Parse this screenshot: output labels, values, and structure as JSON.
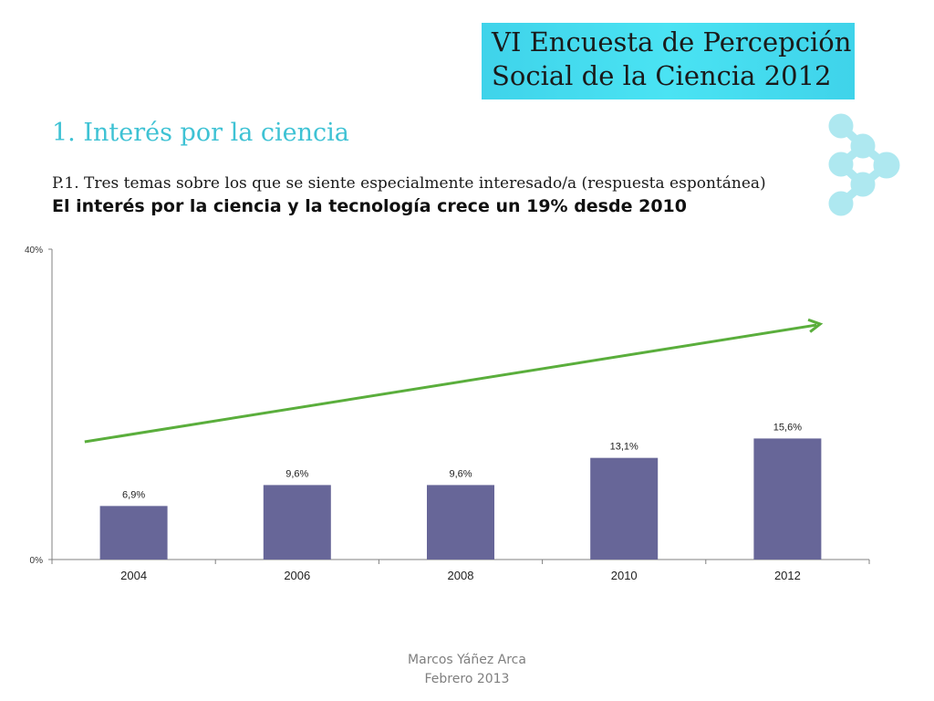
{
  "header": {
    "title_line1": "VI Encuesta de Percepción",
    "title_line2": "Social de la Ciencia 2012"
  },
  "section_title": "1. Interés por la ciencia",
  "question": "P.1. Tres temas sobre los que se siente especialmente interesado/a  (respuesta espontánea)",
  "headline": "El interés por la ciencia y la tecnología crece un 19% desde 2010",
  "footer": {
    "author": "Marcos Yáñez Arca",
    "date": "Febrero 2013"
  },
  "colors": {
    "title_box": "#44dcef",
    "section_title": "#3ec2d4",
    "bars": "#676698",
    "trend_arrow": "#5aae3c",
    "logo": "#aee8f0"
  },
  "chart_data": {
    "type": "bar",
    "categories": [
      "2004",
      "2006",
      "2008",
      "2010",
      "2012"
    ],
    "values": [
      6.9,
      9.6,
      9.6,
      13.1,
      15.6
    ],
    "value_labels": [
      "6,9%",
      "9,6%",
      "9,6%",
      "13,1%",
      "15,6%"
    ],
    "ylim": [
      0,
      40
    ],
    "y_tick_labels": [
      "0%",
      "40%"
    ],
    "grid": false,
    "legend": "none",
    "annotations": [
      "upward trend arrow"
    ]
  }
}
